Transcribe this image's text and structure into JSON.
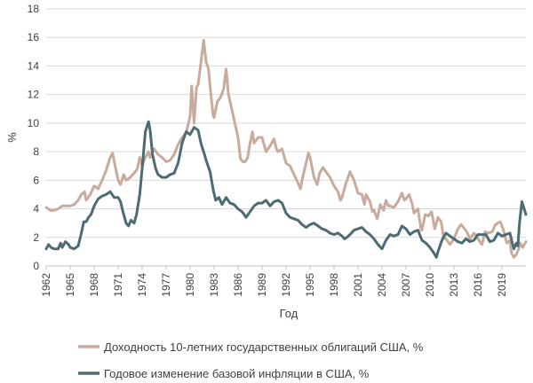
{
  "chart_data": {
    "type": "line",
    "xlabel": "Год",
    "ylabel": "%",
    "xlim": [
      1962,
      2022
    ],
    "ylim": [
      0,
      18
    ],
    "y_ticks": [
      "0",
      "2",
      "4",
      "6",
      "8",
      "10",
      "12",
      "14",
      "16",
      "18"
    ],
    "x_ticks": [
      "1962",
      "1965",
      "1968",
      "1971",
      "1974",
      "1977",
      "1980",
      "1983",
      "1986",
      "1989",
      "1992",
      "1995",
      "1998",
      "2001",
      "2004",
      "2007",
      "2010",
      "2013",
      "2016",
      "2019"
    ],
    "grid": "horizontal",
    "legend_position": "bottom",
    "series": [
      {
        "name": "Доходность 10-летних государственных облигаций США, %",
        "color": "#c8ab9c",
        "points": [
          [
            1962.0,
            4.1
          ],
          [
            1962.5,
            3.9
          ],
          [
            1963.0,
            3.9
          ],
          [
            1963.5,
            4.0
          ],
          [
            1964.0,
            4.2
          ],
          [
            1964.5,
            4.2
          ],
          [
            1965.0,
            4.2
          ],
          [
            1965.5,
            4.3
          ],
          [
            1966.0,
            4.6
          ],
          [
            1966.4,
            5.0
          ],
          [
            1966.8,
            5.2
          ],
          [
            1967.0,
            4.6
          ],
          [
            1967.5,
            5.0
          ],
          [
            1968.0,
            5.6
          ],
          [
            1968.5,
            5.4
          ],
          [
            1969.0,
            6.0
          ],
          [
            1969.5,
            6.7
          ],
          [
            1970.0,
            7.6
          ],
          [
            1970.3,
            7.9
          ],
          [
            1970.7,
            6.8
          ],
          [
            1971.0,
            6.0
          ],
          [
            1971.3,
            5.7
          ],
          [
            1971.7,
            6.4
          ],
          [
            1972.0,
            6.0
          ],
          [
            1972.5,
            6.2
          ],
          [
            1973.0,
            6.5
          ],
          [
            1973.4,
            6.8
          ],
          [
            1973.7,
            7.6
          ],
          [
            1974.0,
            7.0
          ],
          [
            1974.4,
            7.6
          ],
          [
            1974.8,
            8.0
          ],
          [
            1975.0,
            7.6
          ],
          [
            1975.5,
            8.2
          ],
          [
            1976.0,
            7.8
          ],
          [
            1976.5,
            7.6
          ],
          [
            1977.0,
            7.3
          ],
          [
            1977.5,
            7.4
          ],
          [
            1978.0,
            7.8
          ],
          [
            1978.5,
            8.5
          ],
          [
            1979.0,
            9.0
          ],
          [
            1979.5,
            9.3
          ],
          [
            1980.0,
            10.5
          ],
          [
            1980.2,
            12.6
          ],
          [
            1980.5,
            10.0
          ],
          [
            1980.8,
            12.5
          ],
          [
            1981.0,
            12.7
          ],
          [
            1981.3,
            14.0
          ],
          [
            1981.7,
            15.8
          ],
          [
            1982.0,
            14.3
          ],
          [
            1982.3,
            13.8
          ],
          [
            1982.6,
            12.0
          ],
          [
            1982.9,
            10.5
          ],
          [
            1983.0,
            10.4
          ],
          [
            1983.4,
            11.5
          ],
          [
            1983.8,
            11.8
          ],
          [
            1984.2,
            12.4
          ],
          [
            1984.5,
            13.8
          ],
          [
            1984.8,
            12.0
          ],
          [
            1985.0,
            11.5
          ],
          [
            1985.4,
            10.5
          ],
          [
            1985.8,
            9.5
          ],
          [
            1986.0,
            9.0
          ],
          [
            1986.3,
            7.5
          ],
          [
            1986.6,
            7.3
          ],
          [
            1986.9,
            7.3
          ],
          [
            1987.2,
            7.6
          ],
          [
            1987.5,
            8.6
          ],
          [
            1987.8,
            9.4
          ],
          [
            1988.0,
            8.6
          ],
          [
            1988.5,
            9.0
          ],
          [
            1989.0,
            9.0
          ],
          [
            1989.5,
            8.0
          ],
          [
            1990.0,
            8.4
          ],
          [
            1990.5,
            8.9
          ],
          [
            1990.8,
            8.2
          ],
          [
            1991.0,
            8.0
          ],
          [
            1991.5,
            8.2
          ],
          [
            1992.0,
            7.2
          ],
          [
            1992.5,
            7.0
          ],
          [
            1993.0,
            6.4
          ],
          [
            1993.5,
            5.8
          ],
          [
            1993.8,
            5.4
          ],
          [
            1994.0,
            6.0
          ],
          [
            1994.5,
            7.2
          ],
          [
            1994.8,
            7.9
          ],
          [
            1995.0,
            7.6
          ],
          [
            1995.5,
            6.2
          ],
          [
            1995.9,
            5.7
          ],
          [
            1996.2,
            6.5
          ],
          [
            1996.6,
            6.9
          ],
          [
            1997.0,
            6.6
          ],
          [
            1997.5,
            6.2
          ],
          [
            1998.0,
            5.6
          ],
          [
            1998.5,
            5.2
          ],
          [
            1998.8,
            4.6
          ],
          [
            1999.0,
            4.8
          ],
          [
            1999.5,
            5.8
          ],
          [
            2000.0,
            6.6
          ],
          [
            2000.5,
            6.0
          ],
          [
            2001.0,
            5.1
          ],
          [
            2001.5,
            5.0
          ],
          [
            2001.8,
            4.3
          ],
          [
            2002.0,
            5.0
          ],
          [
            2002.5,
            4.5
          ],
          [
            2002.8,
            3.8
          ],
          [
            2003.0,
            3.9
          ],
          [
            2003.4,
            3.3
          ],
          [
            2003.8,
            4.3
          ],
          [
            2004.2,
            3.9
          ],
          [
            2004.5,
            4.6
          ],
          [
            2004.8,
            4.2
          ],
          [
            2005.0,
            4.2
          ],
          [
            2005.5,
            4.1
          ],
          [
            2006.0,
            4.5
          ],
          [
            2006.5,
            5.1
          ],
          [
            2006.8,
            4.6
          ],
          [
            2007.0,
            4.7
          ],
          [
            2007.4,
            5.0
          ],
          [
            2007.8,
            4.3
          ],
          [
            2008.0,
            3.7
          ],
          [
            2008.5,
            4.0
          ],
          [
            2008.9,
            2.5
          ],
          [
            2009.0,
            2.5
          ],
          [
            2009.4,
            3.6
          ],
          [
            2009.8,
            3.5
          ],
          [
            2010.2,
            3.8
          ],
          [
            2010.6,
            2.6
          ],
          [
            2011.0,
            3.4
          ],
          [
            2011.4,
            3.1
          ],
          [
            2011.7,
            2.0
          ],
          [
            2012.0,
            1.9
          ],
          [
            2012.5,
            1.5
          ],
          [
            2013.0,
            1.9
          ],
          [
            2013.5,
            2.6
          ],
          [
            2013.9,
            2.9
          ],
          [
            2014.2,
            2.7
          ],
          [
            2014.6,
            2.4
          ],
          [
            2015.0,
            1.9
          ],
          [
            2015.5,
            2.3
          ],
          [
            2016.0,
            1.9
          ],
          [
            2016.5,
            1.5
          ],
          [
            2016.9,
            2.4
          ],
          [
            2017.3,
            2.3
          ],
          [
            2017.8,
            2.4
          ],
          [
            2018.2,
            2.9
          ],
          [
            2018.8,
            3.1
          ],
          [
            2019.2,
            2.5
          ],
          [
            2019.6,
            1.6
          ],
          [
            2020.0,
            1.8
          ],
          [
            2020.2,
            0.9
          ],
          [
            2020.5,
            0.6
          ],
          [
            2020.8,
            0.8
          ],
          [
            2021.1,
            1.2
          ],
          [
            2021.3,
            1.6
          ],
          [
            2021.6,
            1.3
          ],
          [
            2021.9,
            1.6
          ],
          [
            2022.0,
            1.7
          ]
        ]
      },
      {
        "name": "Годовое изменение базовой инфляции в США, %",
        "color": "#4d6b73",
        "points": [
          [
            1962.0,
            1.2
          ],
          [
            1962.3,
            1.5
          ],
          [
            1962.6,
            1.3
          ],
          [
            1963.0,
            1.2
          ],
          [
            1963.5,
            1.2
          ],
          [
            1963.8,
            1.6
          ],
          [
            1964.0,
            1.3
          ],
          [
            1964.4,
            1.7
          ],
          [
            1964.8,
            1.5
          ],
          [
            1965.0,
            1.3
          ],
          [
            1965.5,
            1.2
          ],
          [
            1966.0,
            1.4
          ],
          [
            1966.4,
            2.3
          ],
          [
            1966.7,
            3.1
          ],
          [
            1967.0,
            3.1
          ],
          [
            1967.3,
            3.4
          ],
          [
            1967.6,
            3.6
          ],
          [
            1968.0,
            4.2
          ],
          [
            1968.5,
            4.7
          ],
          [
            1969.0,
            4.9
          ],
          [
            1969.5,
            5.0
          ],
          [
            1970.0,
            5.2
          ],
          [
            1970.5,
            4.8
          ],
          [
            1971.0,
            4.8
          ],
          [
            1971.3,
            4.5
          ],
          [
            1971.6,
            3.8
          ],
          [
            1972.0,
            3.0
          ],
          [
            1972.3,
            2.8
          ],
          [
            1972.6,
            3.2
          ],
          [
            1973.0,
            3.0
          ],
          [
            1973.3,
            3.6
          ],
          [
            1973.7,
            5.0
          ],
          [
            1974.0,
            6.8
          ],
          [
            1974.4,
            9.4
          ],
          [
            1974.8,
            10.1
          ],
          [
            1975.0,
            9.5
          ],
          [
            1975.3,
            7.8
          ],
          [
            1975.7,
            6.8
          ],
          [
            1976.0,
            6.4
          ],
          [
            1976.5,
            6.2
          ],
          [
            1977.0,
            6.2
          ],
          [
            1977.5,
            6.4
          ],
          [
            1978.0,
            6.5
          ],
          [
            1978.5,
            7.2
          ],
          [
            1979.0,
            8.6
          ],
          [
            1979.5,
            9.4
          ],
          [
            1980.0,
            9.2
          ],
          [
            1980.5,
            9.7
          ],
          [
            1981.0,
            9.5
          ],
          [
            1981.4,
            8.5
          ],
          [
            1981.8,
            7.8
          ],
          [
            1982.0,
            7.4
          ],
          [
            1982.5,
            6.6
          ],
          [
            1982.9,
            5.3
          ],
          [
            1983.2,
            4.6
          ],
          [
            1983.6,
            4.8
          ],
          [
            1984.0,
            4.3
          ],
          [
            1984.5,
            4.8
          ],
          [
            1985.0,
            4.4
          ],
          [
            1985.5,
            4.3
          ],
          [
            1986.0,
            4.0
          ],
          [
            1986.5,
            3.8
          ],
          [
            1987.0,
            3.4
          ],
          [
            1987.5,
            3.8
          ],
          [
            1988.0,
            4.2
          ],
          [
            1988.5,
            4.4
          ],
          [
            1989.0,
            4.4
          ],
          [
            1989.5,
            4.6
          ],
          [
            1990.0,
            4.2
          ],
          [
            1990.5,
            4.5
          ],
          [
            1991.0,
            4.6
          ],
          [
            1991.5,
            4.4
          ],
          [
            1992.0,
            3.7
          ],
          [
            1992.5,
            3.4
          ],
          [
            1993.0,
            3.3
          ],
          [
            1993.5,
            3.2
          ],
          [
            1994.0,
            2.9
          ],
          [
            1994.5,
            2.7
          ],
          [
            1995.0,
            2.9
          ],
          [
            1995.5,
            3.0
          ],
          [
            1996.0,
            2.8
          ],
          [
            1996.5,
            2.6
          ],
          [
            1997.0,
            2.5
          ],
          [
            1997.5,
            2.3
          ],
          [
            1998.0,
            2.2
          ],
          [
            1998.5,
            2.3
          ],
          [
            1999.0,
            2.1
          ],
          [
            1999.3,
            1.9
          ],
          [
            1999.6,
            2.0
          ],
          [
            2000.0,
            2.2
          ],
          [
            2000.5,
            2.5
          ],
          [
            2001.0,
            2.6
          ],
          [
            2001.5,
            2.7
          ],
          [
            2002.0,
            2.4
          ],
          [
            2002.5,
            2.2
          ],
          [
            2003.0,
            1.9
          ],
          [
            2003.5,
            1.5
          ],
          [
            2004.0,
            1.2
          ],
          [
            2004.5,
            1.8
          ],
          [
            2005.0,
            2.2
          ],
          [
            2005.5,
            2.1
          ],
          [
            2006.0,
            2.2
          ],
          [
            2006.5,
            2.8
          ],
          [
            2007.0,
            2.6
          ],
          [
            2007.5,
            2.2
          ],
          [
            2008.0,
            2.4
          ],
          [
            2008.5,
            2.5
          ],
          [
            2009.0,
            1.8
          ],
          [
            2009.5,
            1.6
          ],
          [
            2010.0,
            1.3
          ],
          [
            2010.5,
            0.9
          ],
          [
            2010.8,
            0.6
          ],
          [
            2011.0,
            1.0
          ],
          [
            2011.5,
            1.8
          ],
          [
            2012.0,
            2.3
          ],
          [
            2012.5,
            2.1
          ],
          [
            2013.0,
            1.9
          ],
          [
            2013.5,
            1.7
          ],
          [
            2014.0,
            1.6
          ],
          [
            2014.5,
            1.9
          ],
          [
            2015.0,
            1.7
          ],
          [
            2015.5,
            1.8
          ],
          [
            2016.0,
            2.2
          ],
          [
            2016.5,
            2.2
          ],
          [
            2017.0,
            2.2
          ],
          [
            2017.5,
            1.7
          ],
          [
            2018.0,
            1.8
          ],
          [
            2018.5,
            2.3
          ],
          [
            2019.0,
            2.1
          ],
          [
            2019.5,
            2.2
          ],
          [
            2020.0,
            2.3
          ],
          [
            2020.3,
            1.6
          ],
          [
            2020.5,
            1.2
          ],
          [
            2020.8,
            1.6
          ],
          [
            2021.0,
            1.4
          ],
          [
            2021.2,
            3.0
          ],
          [
            2021.5,
            4.5
          ],
          [
            2022.0,
            3.6
          ]
        ]
      }
    ]
  }
}
